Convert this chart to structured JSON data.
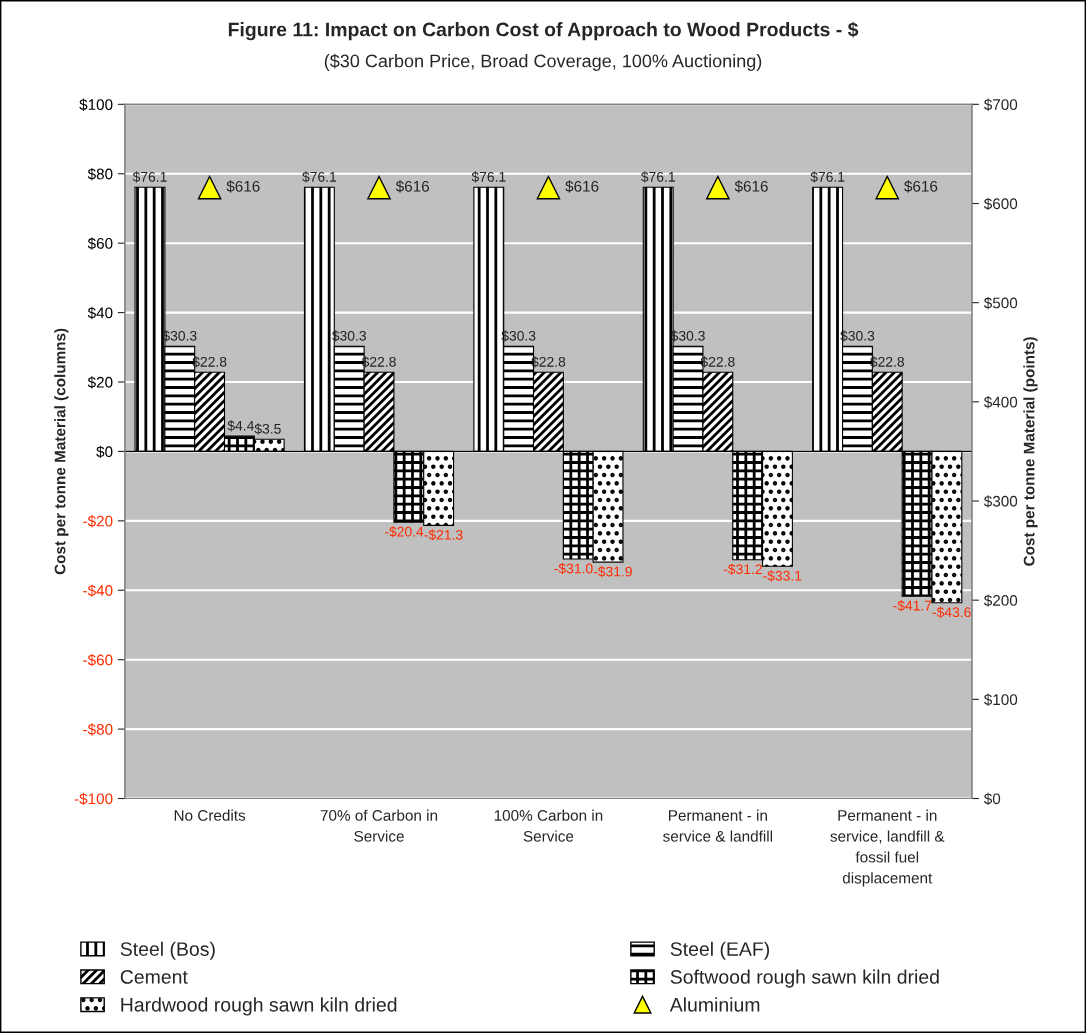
{
  "chart_data": {
    "type": "bar",
    "title": "Figure 11: Impact on Carbon Cost of Approach to Wood Products - $",
    "subtitle": "($30 Carbon Price, Broad Coverage, 100% Auctioning)",
    "ylabel": "Cost per tonne Material (columns)",
    "y2label": "Cost per tonne Material (points)",
    "categories": [
      "No Credits",
      "70% of Carbon in Service",
      "100% Carbon in Service",
      "Permanent - in service & landfill",
      "Permanent - in service, landfill & fossil fuel displacement"
    ],
    "series": [
      {
        "name": "Steel (Bos)",
        "color": "#000000",
        "values": [
          76.1,
          76.1,
          76.1,
          76.1,
          76.1
        ],
        "value_labels": [
          "$76.1",
          "$76.1",
          "$76.1",
          "$76.1",
          "$76.1"
        ]
      },
      {
        "name": "Steel (EAF)",
        "color": "#000000",
        "values": [
          30.3,
          30.3,
          30.3,
          30.3,
          30.3
        ],
        "value_labels": [
          "$30.3",
          "$30.3",
          "$30.3",
          "$30.3",
          "$30.3"
        ]
      },
      {
        "name": "Cement",
        "color": "#000000",
        "values": [
          22.8,
          22.8,
          22.8,
          22.8,
          22.8
        ],
        "value_labels": [
          "$22.8",
          "$22.8",
          "$22.8",
          "$22.8",
          "$22.8"
        ]
      },
      {
        "name": "Softwood rough sawn kiln dried",
        "color": "#000000",
        "values": [
          4.4,
          -20.4,
          -31.0,
          -31.2,
          -41.7
        ],
        "value_labels": [
          "$4.4",
          "-$20.4",
          "-$31.0",
          "-$31.2",
          "-$41.7"
        ]
      },
      {
        "name": "Hardwood rough sawn kiln dried",
        "color": "#000000",
        "values": [
          3.5,
          -21.3,
          -31.9,
          -33.1,
          -43.6
        ],
        "value_labels": [
          "$3.5",
          "-$21.3",
          "-$31.9",
          "-$33.1",
          "-$43.6"
        ]
      },
      {
        "name": "Aluminium",
        "type": "scatter",
        "axis": "y2",
        "marker": "triangle",
        "color": "#ffff00",
        "values": [
          616,
          616,
          616,
          616,
          616
        ],
        "value_labels": [
          "$616",
          "$616",
          "$616",
          "$616",
          "$616"
        ]
      }
    ],
    "ylim": [
      -100,
      100
    ],
    "yticks": [
      {
        "value": -100,
        "label": "-$100"
      },
      {
        "value": -80,
        "label": "-$80"
      },
      {
        "value": -60,
        "label": "-$60"
      },
      {
        "value": -40,
        "label": "-$40"
      },
      {
        "value": -20,
        "label": "-$20"
      },
      {
        "value": 0,
        "label": "$0"
      },
      {
        "value": 20,
        "label": "$20"
      },
      {
        "value": 40,
        "label": "$40"
      },
      {
        "value": 60,
        "label": "$60"
      },
      {
        "value": 80,
        "label": "$80"
      },
      {
        "value": 100,
        "label": "$100"
      }
    ],
    "y2lim": [
      0,
      700
    ],
    "y2ticks": [
      {
        "value": 0,
        "label": "$0"
      },
      {
        "value": 100,
        "label": "$100"
      },
      {
        "value": 200,
        "label": "$200"
      },
      {
        "value": 300,
        "label": "$300"
      },
      {
        "value": 400,
        "label": "$400"
      },
      {
        "value": 500,
        "label": "$500"
      },
      {
        "value": 600,
        "label": "$600"
      },
      {
        "value": 700,
        "label": "$700"
      }
    ],
    "grid": "y",
    "legend": "bottom"
  }
}
